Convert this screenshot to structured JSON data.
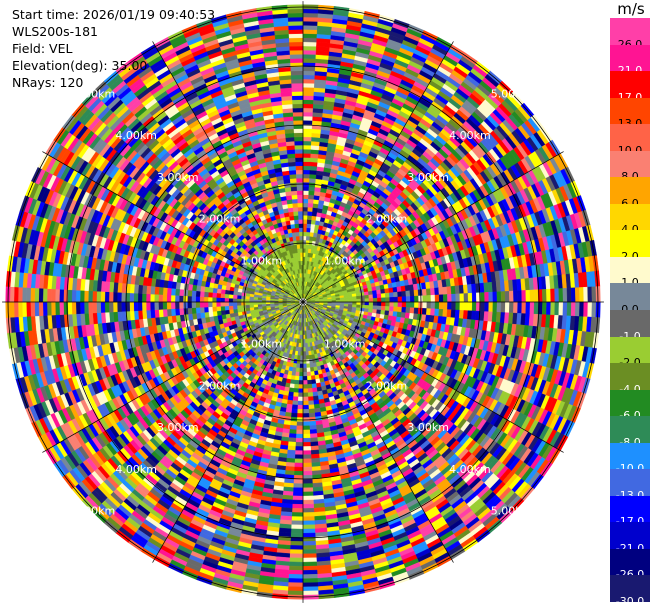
{
  "info": {
    "start_time": "Start time: 2026/01/19 09:40:53",
    "instrument": "WLS200s-181",
    "field": "Field: VEL",
    "elevation": "Elevation(deg): 35.00",
    "nrays": "NRays: 120"
  },
  "colorbar": {
    "unit": "m/s",
    "bins": [
      {
        "label": "26.0",
        "color": "#ff3fa8"
      },
      {
        "label": "21.0",
        "color": "#ff1493"
      },
      {
        "label": "17.0",
        "color": "#ff0000"
      },
      {
        "label": "13.0",
        "color": "#ff4500"
      },
      {
        "label": "10.0",
        "color": "#ff6347"
      },
      {
        "label": "8.0",
        "color": "#fa8072"
      },
      {
        "label": "6.0",
        "color": "#ffa500"
      },
      {
        "label": "4.0",
        "color": "#ffd700"
      },
      {
        "label": "2.0",
        "color": "#ffff00"
      },
      {
        "label": "1.0",
        "color": "#fffacd"
      },
      {
        "label": "0.0",
        "color": "#778899"
      },
      {
        "label": "-1.0",
        "color": "#696969"
      },
      {
        "label": "-2.0",
        "color": "#9acd32"
      },
      {
        "label": "-4.0",
        "color": "#6b8e23"
      },
      {
        "label": "-6.0",
        "color": "#228b22"
      },
      {
        "label": "-8.0",
        "color": "#2e8b57"
      },
      {
        "label": "-10.0",
        "color": "#1e90ff"
      },
      {
        "label": "-13.0",
        "color": "#4169e1"
      },
      {
        "label": "-17.0",
        "color": "#0000ff"
      },
      {
        "label": "-21.0",
        "color": "#0000cd"
      },
      {
        "label": "-26.0",
        "color": "#000080"
      },
      {
        "label": "-30.0",
        "color": "#191970"
      }
    ]
  },
  "chart_data": {
    "type": "heatmap",
    "projection": "polar PPI",
    "field": "VEL",
    "units": "m/s",
    "nrays": 120,
    "elevation_deg": 35.0,
    "range_rings_km": [
      1.0,
      2.0,
      3.0,
      4.0,
      5.0
    ],
    "ring_label_texts": [
      "1.00km",
      "2.00km",
      "3.00km",
      "4.00km",
      "5.00km"
    ],
    "max_range_km": 5.1,
    "grid": true,
    "azimuth_spokes_deg": [
      0,
      30,
      60,
      90,
      120,
      150,
      180,
      210,
      240,
      270,
      300,
      330
    ],
    "description_of_field": "near range (<1 km) mostly 0 to -2 m/s with patches of 2 to 4 m/s; beyond ~1 km values are noisy across the full -30 to 26 m/s scale"
  }
}
